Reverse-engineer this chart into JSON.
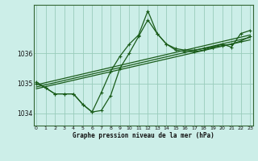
{
  "title": "Graphe pression niveau de la mer (hPa)",
  "bg_color": "#cceee8",
  "grid_color": "#99ccbb",
  "line_color": "#1a5c1a",
  "x_ticks": [
    0,
    1,
    2,
    3,
    4,
    5,
    6,
    7,
    8,
    9,
    10,
    11,
    12,
    13,
    14,
    15,
    16,
    17,
    18,
    19,
    20,
    21,
    22,
    23
  ],
  "ylim": [
    1033.6,
    1037.6
  ],
  "yticks": [
    1034,
    1035,
    1036
  ],
  "series1": [
    1035.0,
    1034.85,
    1034.65,
    1034.65,
    1034.65,
    1034.3,
    1034.05,
    1034.1,
    1034.6,
    1035.5,
    1036.0,
    1036.55,
    1037.1,
    1036.65,
    1036.3,
    1036.1,
    1036.05,
    1036.05,
    1036.1,
    1036.2,
    1036.25,
    1036.3,
    1036.4,
    1036.55
  ],
  "series2": [
    1035.05,
    1034.85,
    1034.65,
    1034.65,
    1034.65,
    1034.3,
    1034.05,
    1034.7,
    1035.4,
    1035.9,
    1036.3,
    1036.6,
    1037.4,
    1036.65,
    1036.3,
    1036.15,
    1036.1,
    1036.1,
    1036.15,
    1036.2,
    1036.3,
    1036.2,
    1036.65,
    1036.75
  ],
  "trend1_x": [
    0,
    23
  ],
  "trend1_y": [
    1034.95,
    1036.6
  ],
  "trend2_x": [
    0,
    23
  ],
  "trend2_y": [
    1034.88,
    1036.52
  ],
  "trend3_x": [
    0,
    23
  ],
  "trend3_y": [
    1034.82,
    1036.44
  ]
}
